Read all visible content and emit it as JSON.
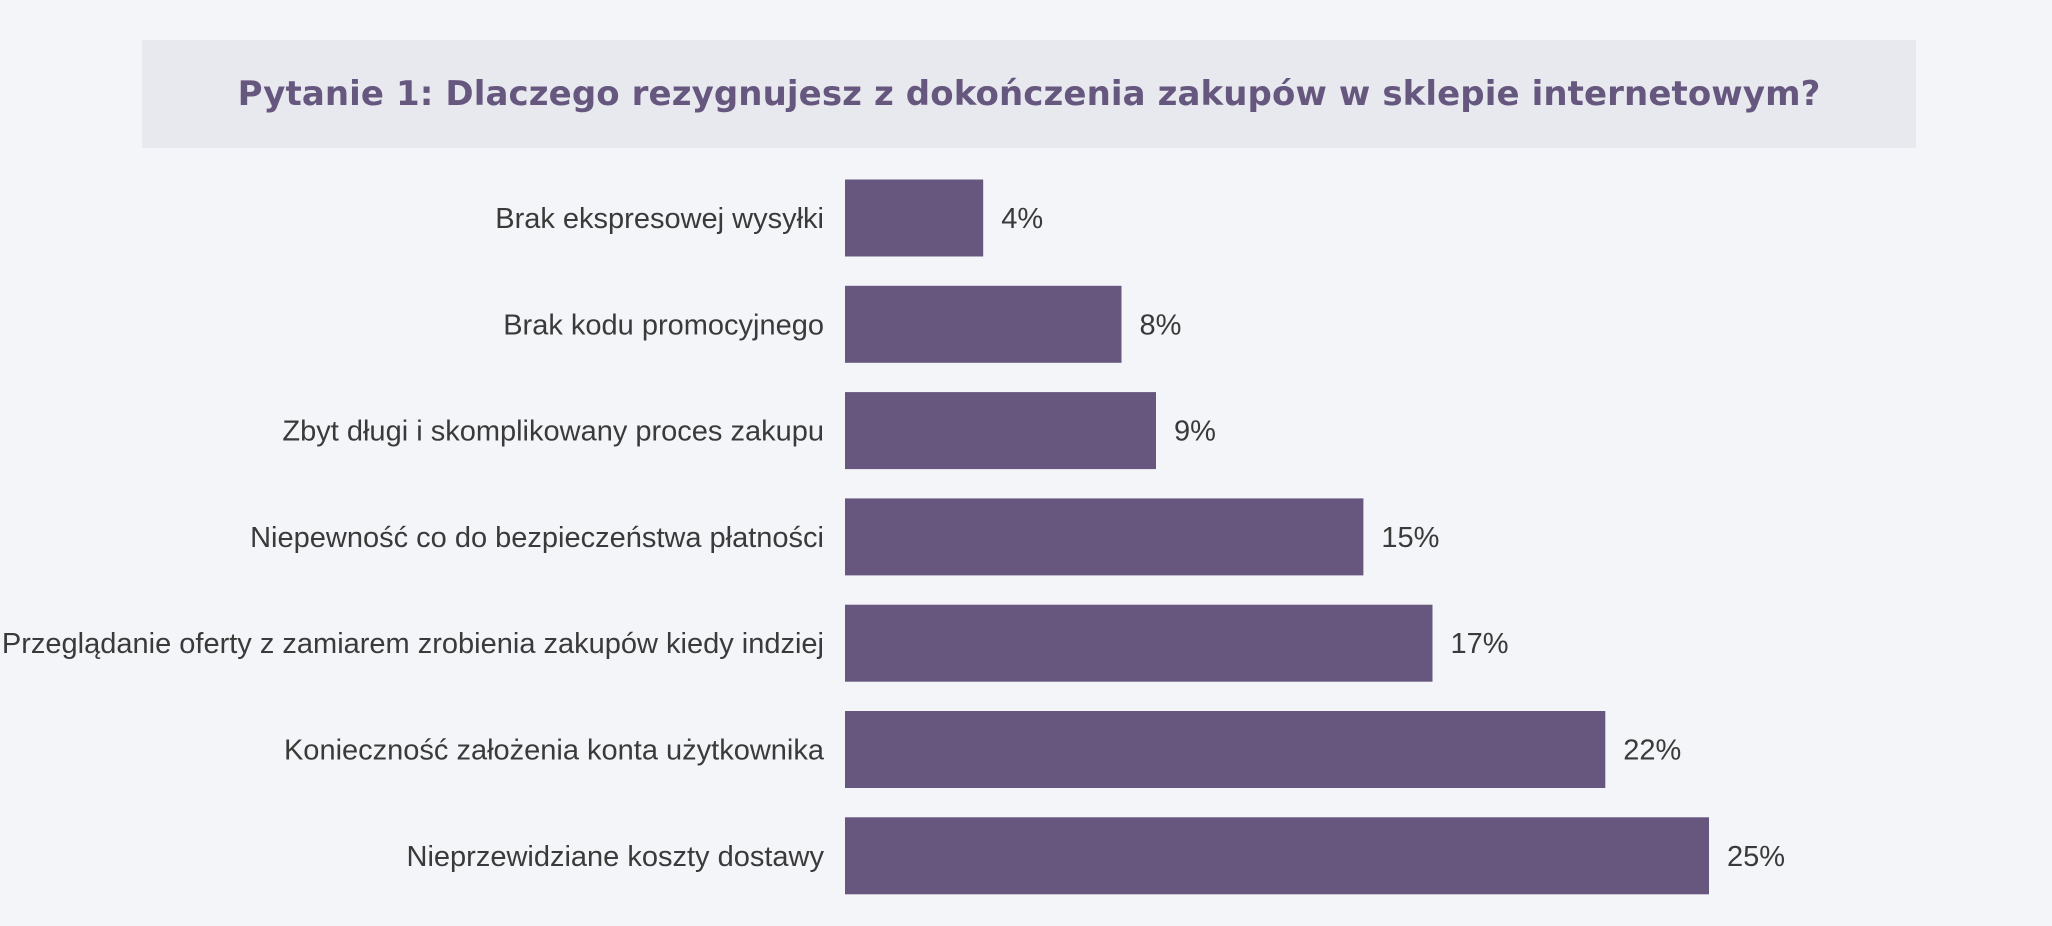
{
  "chart_data": {
    "type": "bar",
    "orientation": "horizontal",
    "title": "Pytanie 1:  Dlaczego rezygnujesz z dokończenia zakupów w sklepie internetowym?",
    "categories": [
      "Brak ekspresowej wysyłki",
      "Brak kodu promocyjnego",
      "Zbyt długi i skomplikowany proces zakupu",
      "Niepewność co do bezpieczeństwa płatności",
      "Przeglądanie oferty z zamiarem zrobienia zakupów kiedy indziej",
      "Konieczność założenia konta użytkownika",
      "Nieprzewidziane koszty dostawy"
    ],
    "values": [
      4,
      8,
      9,
      15,
      17,
      22,
      25
    ],
    "value_labels": [
      "4%",
      "8%",
      "9%",
      "15%",
      "17%",
      "22%",
      "25%"
    ],
    "xlabel": "",
    "ylabel": "",
    "grid": false,
    "legend": "none",
    "colors": {
      "bar": "#67577f",
      "title": "#66577f",
      "title_band": "#e8e8ef",
      "background": "#f4f5f8",
      "text": "#3a3a3a"
    }
  }
}
